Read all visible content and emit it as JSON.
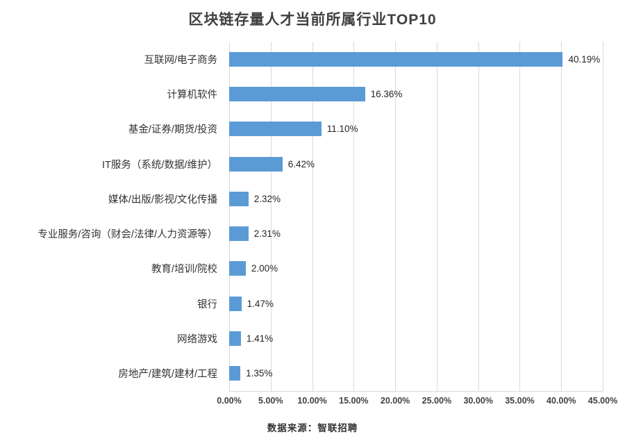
{
  "chart_data": {
    "type": "bar",
    "orientation": "horizontal",
    "title": "区块链存量人才当前所属行业TOP10",
    "categories": [
      "互联网/电子商务",
      "计算机软件",
      "基金/证券/期货/投资",
      "IT服务（系统/数据/维护）",
      "媒体/出版/影视/文化传播",
      "专业服务/咨询（财会/法律/人力资源等）",
      "教育/培训/院校",
      "银行",
      "网络游戏",
      "房地产/建筑/建材/工程"
    ],
    "values": [
      40.19,
      16.36,
      11.1,
      6.42,
      2.32,
      2.31,
      2.0,
      1.47,
      1.41,
      1.35
    ],
    "data_labels": [
      "40.19%",
      "16.36%",
      "11.10%",
      "6.42%",
      "2.32%",
      "2.31%",
      "2.00%",
      "1.47%",
      "1.41%",
      "1.35%"
    ],
    "xlabel": "",
    "ylabel": "",
    "xlim": [
      0,
      45
    ],
    "tick_step": 5,
    "x_ticks": [
      "0.00%",
      "5.00%",
      "10.00%",
      "15.00%",
      "20.00%",
      "25.00%",
      "30.00%",
      "35.00%",
      "40.00%",
      "45.00%"
    ],
    "grid": true,
    "legend": false,
    "bar_color": "#5B9BD5",
    "gridline_color": "#d9d9d9"
  },
  "footer": {
    "source": "数据来源：智联招聘"
  }
}
